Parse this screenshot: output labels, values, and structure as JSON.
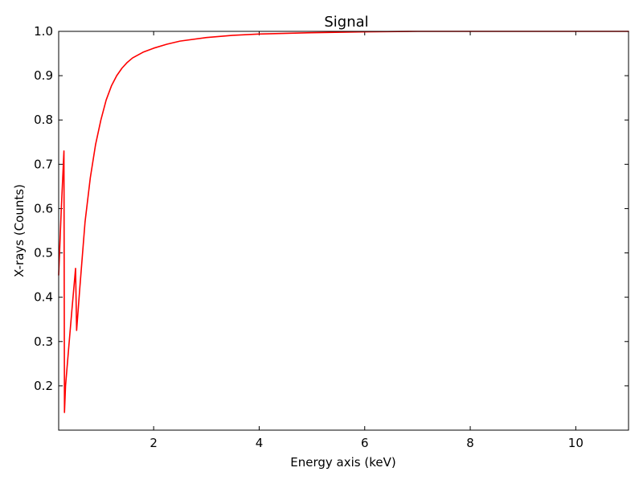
{
  "chart_data": {
    "type": "line",
    "title": "Signal",
    "xlabel": "Energy axis (keV)",
    "ylabel": "X-rays (Counts)",
    "xlim": [
      0.2,
      11.0
    ],
    "ylim": [
      0.1,
      1.0
    ],
    "x_ticks": [
      2,
      4,
      6,
      8,
      10
    ],
    "y_ticks": [
      0.2,
      0.3,
      0.4,
      0.5,
      0.6,
      0.7,
      0.8,
      0.9,
      1.0
    ],
    "x_tick_labels": [
      "2",
      "4",
      "6",
      "8",
      "10"
    ],
    "y_tick_labels": [
      "0.2",
      "0.3",
      "0.4",
      "0.5",
      "0.6",
      "0.7",
      "0.8",
      "0.9",
      "1.0"
    ],
    "grid": false,
    "series": [
      {
        "color": "#ff0000",
        "x": [
          0.2,
          0.25,
          0.3,
          0.31,
          0.33,
          0.4,
          0.45,
          0.52,
          0.54,
          0.6,
          0.7,
          0.8,
          0.9,
          1.0,
          1.1,
          1.2,
          1.3,
          1.4,
          1.5,
          1.6,
          1.8,
          2.0,
          2.25,
          2.5,
          3.0,
          3.5,
          4.0,
          5.0,
          6.0,
          7.0,
          8.0,
          9.0,
          10.0,
          11.0
        ],
        "y": [
          0.45,
          0.6,
          0.73,
          0.14,
          0.2,
          0.3,
          0.37,
          0.465,
          0.325,
          0.42,
          0.57,
          0.67,
          0.745,
          0.8,
          0.845,
          0.877,
          0.9,
          0.917,
          0.93,
          0.94,
          0.953,
          0.962,
          0.971,
          0.978,
          0.986,
          0.991,
          0.994,
          0.997,
          0.999,
          1.0,
          1.0,
          1.0,
          1.0,
          1.0
        ]
      }
    ]
  }
}
